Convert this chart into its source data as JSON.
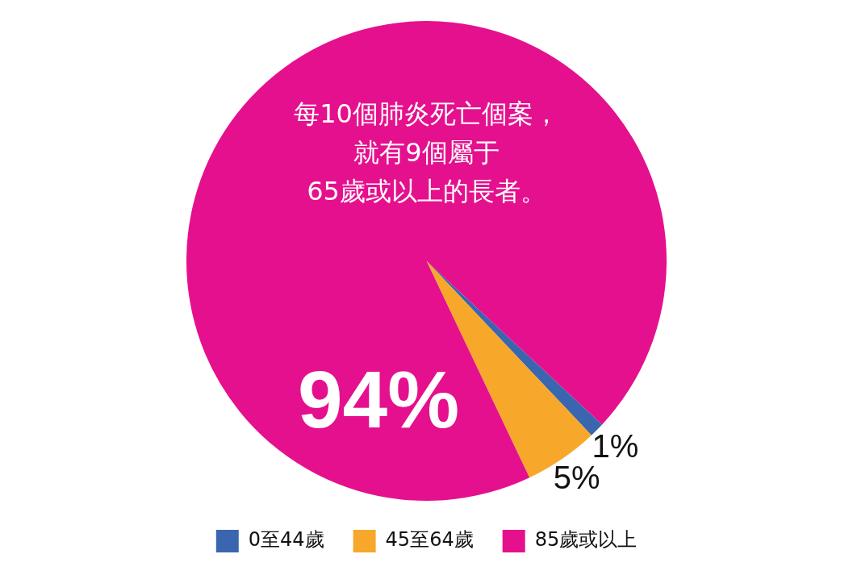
{
  "chart_data": {
    "type": "pie",
    "categories": [
      "0至44歲",
      "45至64歲",
      "85歲或以上"
    ],
    "values": [
      1,
      5,
      94
    ],
    "colors": [
      "#3a66b0",
      "#f7a82a",
      "#e5108d"
    ],
    "value_labels": [
      "1%",
      "5%",
      "94%"
    ],
    "annotations": [
      "每10個肺炎死亡個案，",
      "就有9個屬于",
      "65歲或以上的長者。"
    ],
    "legend": "bottom"
  }
}
